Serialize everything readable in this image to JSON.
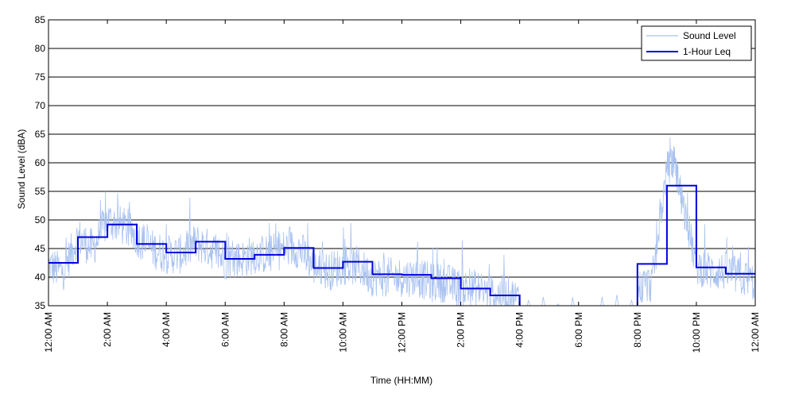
{
  "chart_data": {
    "type": "line",
    "title": "",
    "xlabel": "Time (HH:MM)",
    "ylabel": "Sound Level (dBA)",
    "xlim": [
      0,
      24
    ],
    "ylim": [
      35,
      85
    ],
    "yticks": [
      35,
      40,
      45,
      50,
      55,
      60,
      65,
      70,
      75,
      80,
      85
    ],
    "xticks": [
      {
        "hour": 0,
        "label": "12:00 AM"
      },
      {
        "hour": 2,
        "label": "2:00 AM"
      },
      {
        "hour": 4,
        "label": "4:00 AM"
      },
      {
        "hour": 6,
        "label": "6:00 AM"
      },
      {
        "hour": 8,
        "label": "8:00 AM"
      },
      {
        "hour": 10,
        "label": "10:00 AM"
      },
      {
        "hour": 12,
        "label": "12:00 PM"
      },
      {
        "hour": 14,
        "label": "2:00 PM"
      },
      {
        "hour": 16,
        "label": "4:00 PM"
      },
      {
        "hour": 18,
        "label": "6:00 PM"
      },
      {
        "hour": 20,
        "label": "8:00 PM"
      },
      {
        "hour": 22,
        "label": "10:00 PM"
      },
      {
        "hour": 24,
        "label": "12:00 AM"
      }
    ],
    "grid": {
      "horizontal": true,
      "vertical": false
    },
    "legend_position": "top-right",
    "series": [
      {
        "name": "Sound Level",
        "color": "#a9c2f0",
        "note": "",
        "x": [
          0,
          0.5,
          1,
          1.5,
          2,
          2.5,
          3,
          3.5,
          4,
          4.5,
          5,
          5.5,
          6,
          6.5,
          7,
          7.5,
          8,
          8.5,
          9,
          9.5,
          10,
          10.5,
          11,
          11.5,
          12,
          12.5,
          13,
          13.5,
          14,
          14.5,
          15,
          15.5,
          16,
          20,
          20.5,
          21,
          21.25,
          21.5,
          22,
          22.5,
          23,
          23.5,
          24
        ],
        "y": [
          42,
          41,
          47,
          45,
          50,
          49,
          47,
          45,
          44,
          44,
          46,
          45,
          43,
          43,
          44,
          44,
          45,
          45,
          42,
          41,
          42,
          42,
          40,
          40,
          40,
          40,
          39,
          39,
          38,
          38,
          37,
          37,
          36,
          38,
          39,
          59,
          60,
          54,
          42,
          41,
          41,
          40,
          39
        ]
      },
      {
        "name": "1-Hour Leq",
        "color": "#0000e0",
        "x": [
          0,
          1,
          2,
          3,
          4,
          5,
          6,
          7,
          8,
          9,
          10,
          11,
          12,
          13,
          14,
          15,
          16,
          20,
          21,
          22,
          23,
          24
        ],
        "y": [
          42.5,
          47.0,
          49.2,
          45.8,
          44.3,
          46.2,
          43.2,
          43.9,
          45.1,
          41.6,
          42.7,
          40.5,
          40.4,
          39.8,
          38.0,
          36.8,
          null,
          42.3,
          56.0,
          41.7,
          40.6,
          40.6
        ]
      }
    ]
  }
}
